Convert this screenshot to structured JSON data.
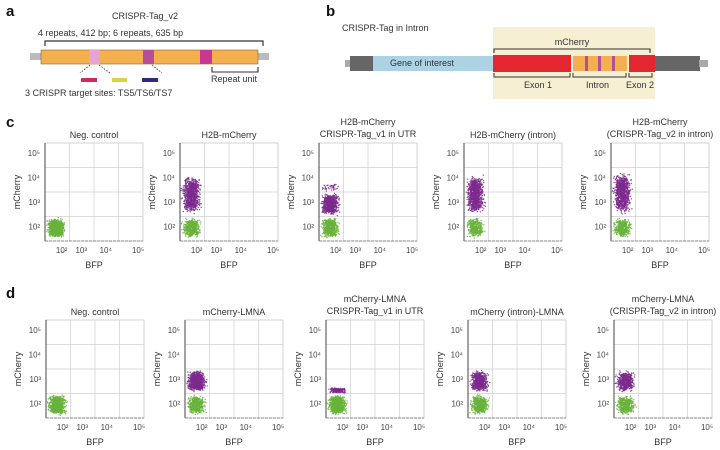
{
  "panel_labels": {
    "a": "a",
    "b": "b",
    "c": "c",
    "d": "d"
  },
  "panel_a": {
    "title": "CRISPR-Tag_v2",
    "subtitle": "4 repeats, 412 bp; 6 repeats, 635 bp",
    "repeat_unit_label": "Repeat unit",
    "target_sites_label": "3 CRISPR target sites: TS5/TS6/TS7",
    "colors": {
      "repeat": "#f4b04e",
      "ts_light": "#e6a4d4",
      "ts_mid": "#b44f98",
      "ts_dark": "#c93790",
      "ts5": "#d62a5a",
      "ts6": "#d9d447",
      "ts7": "#2f2b7c"
    }
  },
  "panel_b": {
    "title": "CRISPR-Tag in Intron",
    "gene_label": "Gene of interest",
    "mcherry_label": "mCherry",
    "exon1_label": "Exon 1",
    "intron_label": "Intron",
    "exon2_label": "Exon 2",
    "colors": {
      "highlight_bg": "#f6efd3",
      "gene": "#acd3e3",
      "exon": "#e3262f",
      "intron": "#f4b04e",
      "flank": "#666666"
    }
  },
  "chart_data": {
    "type": "scatter",
    "xlabel": "BFP",
    "ylabel": "mCherry",
    "x_scale": "log",
    "y_scale": "log",
    "x_ticks": [
      "10²",
      "10³",
      "10⁴",
      "10⁵"
    ],
    "y_ticks": [
      "10²",
      "10³",
      "10⁴",
      "10⁵"
    ],
    "grid": true,
    "colors": {
      "negative": "#69b33c",
      "positive": "#7d2a8e"
    },
    "rows": [
      {
        "panel": "c",
        "plots": [
          {
            "title": [
              "Neg. control"
            ],
            "populations": [
              {
                "class": "negative",
                "x": [
                  15,
                  180
                ],
                "y": [
                  30,
                  250
                ],
                "count": 900
              }
            ]
          },
          {
            "title": [
              "H2B-mCherry"
            ],
            "populations": [
              {
                "class": "negative",
                "x": [
                  15,
                  200
                ],
                "y": [
                  30,
                  250
                ],
                "count": 500
              },
              {
                "class": "positive",
                "x": [
                  15,
                  200
                ],
                "y": [
                  250,
                  15000
                ],
                "count": 900
              }
            ]
          },
          {
            "title": [
              "H2B-mCherry",
              "CRISPR-Tag_v1 in UTR"
            ],
            "populations": [
              {
                "class": "negative",
                "x": [
                  15,
                  190
                ],
                "y": [
                  30,
                  250
                ],
                "count": 600
              },
              {
                "class": "positive",
                "x": [
                  15,
                  190
                ],
                "y": [
                  250,
                  2500
                ],
                "count": 800
              },
              {
                "class": "positive",
                "x": [
                  15,
                  190
                ],
                "y": [
                  2500,
                  6000
                ],
                "count": 40
              }
            ]
          },
          {
            "title": [
              "H2B-mCherry (intron)"
            ],
            "populations": [
              {
                "class": "negative",
                "x": [
                  15,
                  200
                ],
                "y": [
                  30,
                  250
                ],
                "count": 400
              },
              {
                "class": "positive",
                "x": [
                  15,
                  200
                ],
                "y": [
                  250,
                  15000
                ],
                "count": 900
              }
            ]
          },
          {
            "title": [
              "H2B-mCherry",
              "(CRISPR-Tag_v2 in intron)"
            ],
            "populations": [
              {
                "class": "negative",
                "x": [
                  15,
                  200
                ],
                "y": [
                  30,
                  250
                ],
                "count": 400
              },
              {
                "class": "positive",
                "x": [
                  15,
                  200
                ],
                "y": [
                  250,
                  20000
                ],
                "count": 900
              }
            ]
          }
        ]
      },
      {
        "panel": "d",
        "plots": [
          {
            "title": [
              "Neg. control"
            ],
            "populations": [
              {
                "class": "negative",
                "x": [
                  15,
                  200
                ],
                "y": [
                  30,
                  250
                ],
                "count": 900
              }
            ]
          },
          {
            "title": [
              "mCherry-LMNA"
            ],
            "populations": [
              {
                "class": "negative",
                "x": [
                  15,
                  200
                ],
                "y": [
                  30,
                  250
                ],
                "count": 500
              },
              {
                "class": "positive",
                "x": [
                  15,
                  200
                ],
                "y": [
                  250,
                  2500
                ],
                "count": 900
              }
            ]
          },
          {
            "title": [
              "mCherry-LMNA",
              "CRISPR-Tag_v1 in UTR"
            ],
            "populations": [
              {
                "class": "negative",
                "x": [
                  15,
                  200
                ],
                "y": [
                  30,
                  250
                ],
                "count": 900
              },
              {
                "class": "positive",
                "x": [
                  15,
                  200
                ],
                "y": [
                  250,
                  450
                ],
                "count": 250
              }
            ]
          },
          {
            "title": [
              "mCherry (intron)-LMNA"
            ],
            "populations": [
              {
                "class": "negative",
                "x": [
                  15,
                  200
                ],
                "y": [
                  30,
                  250
                ],
                "count": 500
              },
              {
                "class": "positive",
                "x": [
                  15,
                  200
                ],
                "y": [
                  250,
                  2500
                ],
                "count": 600
              }
            ]
          },
          {
            "title": [
              "mCherry-LMNA",
              "(CRISPR-Tag_v2 in intron)"
            ],
            "populations": [
              {
                "class": "negative",
                "x": [
                  15,
                  200
                ],
                "y": [
                  30,
                  250
                ],
                "count": 500
              },
              {
                "class": "positive",
                "x": [
                  15,
                  200
                ],
                "y": [
                  250,
                  2500
                ],
                "count": 550
              }
            ]
          }
        ]
      }
    ]
  }
}
